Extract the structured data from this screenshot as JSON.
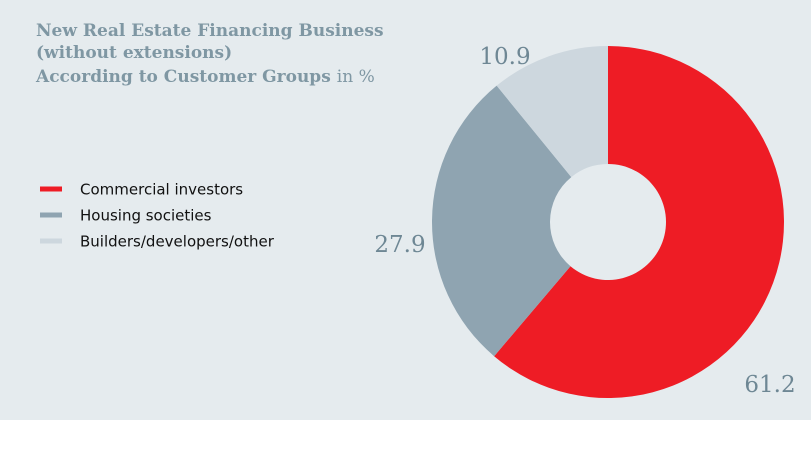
{
  "chart_data": {
    "type": "donut",
    "title": [
      "New Real Estate Financing Business",
      "(without extensions)",
      "According to Customer Groups"
    ],
    "unit": "in %",
    "categories": [
      "Commercial investors",
      "Housing societies",
      "Builders/developers/other"
    ],
    "values": [
      61.2,
      27.9,
      10.9
    ],
    "colors": [
      "#ee1c25",
      "#8fa4b1",
      "#cdd7de"
    ],
    "legend": "left"
  }
}
